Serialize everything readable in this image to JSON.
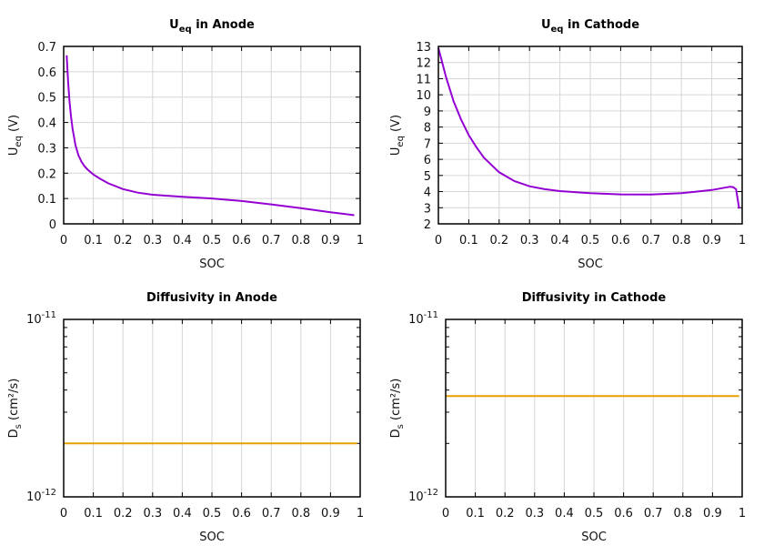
{
  "chart_data": [
    {
      "type": "line",
      "title": "U",
      "title_sub": "eq",
      "title_rest": " in Anode",
      "xlabel": "SOC",
      "ylabel": "U",
      "ylabel_sub": "eq",
      "ylabel_rest": " (V)",
      "xlim": [
        0,
        1
      ],
      "ylim": [
        0,
        0.7
      ],
      "yscale": "linear",
      "grid": "both",
      "xticks": [
        "0",
        "0.1",
        "0.2",
        "0.3",
        "0.4",
        "0.5",
        "0.6",
        "0.7",
        "0.8",
        "0.9",
        "1"
      ],
      "yticks": [
        "0",
        "0.1",
        "0.2",
        "0.3",
        "0.4",
        "0.5",
        "0.6",
        "0.7"
      ],
      "color": "#9400d3",
      "x": [
        0.01,
        0.015,
        0.02,
        0.025,
        0.03,
        0.04,
        0.05,
        0.06,
        0.07,
        0.08,
        0.1,
        0.12,
        0.15,
        0.2,
        0.25,
        0.3,
        0.4,
        0.5,
        0.6,
        0.7,
        0.8,
        0.9,
        0.98
      ],
      "y": [
        0.665,
        0.56,
        0.48,
        0.42,
        0.375,
        0.31,
        0.27,
        0.245,
        0.228,
        0.215,
        0.195,
        0.18,
        0.16,
        0.137,
        0.123,
        0.115,
        0.107,
        0.1,
        0.09,
        0.077,
        0.062,
        0.046,
        0.034
      ]
    },
    {
      "type": "line",
      "title": "U",
      "title_sub": "eq",
      "title_rest": " in Cathode",
      "xlabel": "SOC",
      "ylabel": "U",
      "ylabel_sub": "eq",
      "ylabel_rest": " (V)",
      "xlim": [
        0,
        1
      ],
      "ylim": [
        2,
        13
      ],
      "yscale": "linear",
      "grid": "both",
      "xticks": [
        "0",
        "0.1",
        "0.2",
        "0.3",
        "0.4",
        "0.5",
        "0.6",
        "0.7",
        "0.8",
        "0.9",
        "1"
      ],
      "yticks": [
        "2",
        "3",
        "4",
        "5",
        "6",
        "7",
        "8",
        "9",
        "10",
        "11",
        "12",
        "13"
      ],
      "color": "#9400d3",
      "x": [
        0,
        0.025,
        0.05,
        0.075,
        0.1,
        0.125,
        0.15,
        0.2,
        0.25,
        0.3,
        0.35,
        0.4,
        0.5,
        0.6,
        0.7,
        0.8,
        0.9,
        0.96,
        0.97,
        0.98,
        0.99
      ],
      "y": [
        12.9,
        11.1,
        9.6,
        8.45,
        7.5,
        6.75,
        6.1,
        5.2,
        4.65,
        4.33,
        4.15,
        4.03,
        3.9,
        3.83,
        3.82,
        3.9,
        4.1,
        4.3,
        4.28,
        4.15,
        2.95
      ]
    },
    {
      "type": "line",
      "title": "Diffusivity in Anode",
      "xlabel": "SOC",
      "ylabel": "D",
      "ylabel_sub": "s",
      "ylabel_rest": " (cm²/s)",
      "xlim": [
        0,
        1
      ],
      "ylim": [
        1e-12,
        1e-11
      ],
      "yscale": "log",
      "grid": "x",
      "xticks": [
        "0",
        "0.1",
        "0.2",
        "0.3",
        "0.4",
        "0.5",
        "0.6",
        "0.7",
        "0.8",
        "0.9",
        "1"
      ],
      "yticks": [
        {
          "base": "10",
          "exp": "-12"
        },
        {
          "base": "10",
          "exp": "-11"
        }
      ],
      "color": "#e6a000",
      "x": [
        0,
        0.99
      ],
      "y": [
        2e-12,
        2e-12
      ]
    },
    {
      "type": "line",
      "title": "Diffusivity in Cathode",
      "xlabel": "SOC",
      "ylabel": "D",
      "ylabel_sub": "s",
      "ylabel_rest": " (cm²/s)",
      "xlim": [
        0,
        1
      ],
      "ylim": [
        1e-12,
        1e-11
      ],
      "yscale": "log",
      "grid": "x",
      "xticks": [
        "0",
        "0.1",
        "0.2",
        "0.3",
        "0.4",
        "0.5",
        "0.6",
        "0.7",
        "0.8",
        "0.9",
        "1"
      ],
      "yticks": [
        {
          "base": "10",
          "exp": "-12"
        },
        {
          "base": "10",
          "exp": "-11"
        }
      ],
      "color": "#e6a000",
      "x": [
        0,
        0.99
      ],
      "y": [
        3.7e-12,
        3.7e-12
      ]
    }
  ]
}
